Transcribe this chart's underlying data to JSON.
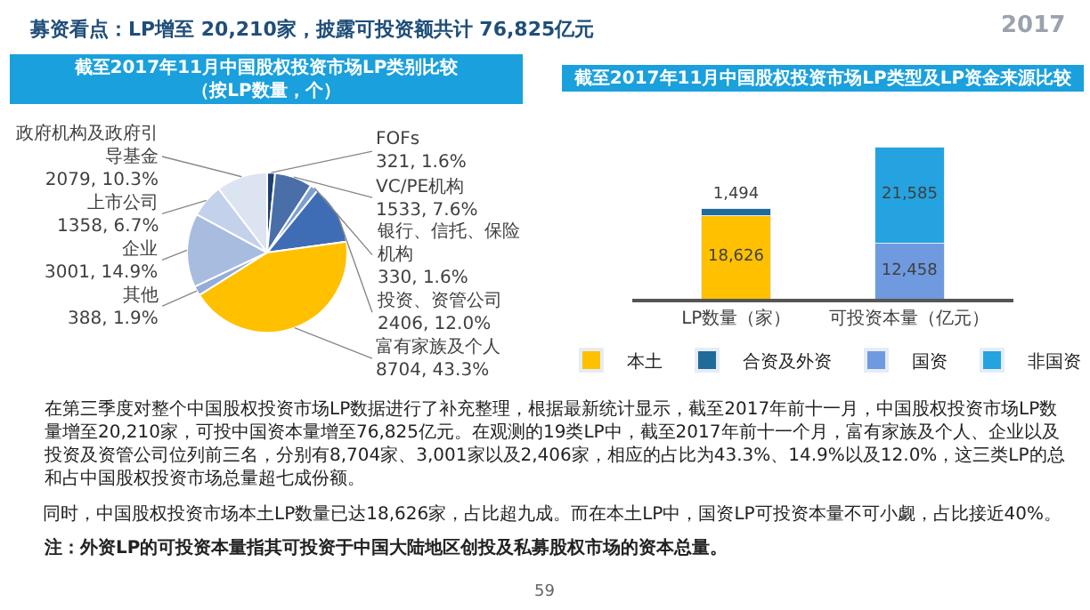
{
  "chart_data": [
    {
      "type": "pie",
      "title": "截至2017年11月中国股权投资市场LP类别比较",
      "subtitle": "（按LP数量，个）",
      "categories": [
        "FOFs",
        "VC/PE机构",
        "银行、信托、保险机构",
        "投资、资管公司",
        "富有家族及个人",
        "其他",
        "企业",
        "上市公司",
        "政府机构及政府引导基金"
      ],
      "values": [
        321,
        1533,
        330,
        2406,
        8704,
        388,
        3001,
        1358,
        2079
      ],
      "value_labels": [
        "321, 1.6%",
        "1533, 7.6%",
        "330, 1.6%",
        "2406, 12.0%",
        "8704, 43.3%",
        "388, 1.9%",
        "3001, 14.9%",
        "1358, 6.7%",
        "2079, 10.3%"
      ],
      "colors": [
        "#1f3f73",
        "#4a6ea8",
        "#7e9fd2",
        "#3e6db5",
        "#ffc000",
        "#93acd8",
        "#a8bce0",
        "#c3d1ea",
        "#dce4f2"
      ]
    },
    {
      "type": "bar",
      "title": "截至2017年11月中国股权投资市场LP类型及LP资金来源比较",
      "stacked": true,
      "legend": "bottom",
      "categories": [
        "LP数量（家）",
        "可投资本量（亿元）"
      ],
      "series": [
        {
          "name": "本土",
          "color": "#ffc000",
          "values": [
            18626,
            null
          ],
          "value_labels": [
            "18,626",
            null
          ]
        },
        {
          "name": "合资及外资",
          "color": "#1f6b9a",
          "values": [
            1494,
            null
          ],
          "value_labels": [
            "1,494",
            null
          ]
        },
        {
          "name": "国资",
          "color": "#6f9ae0",
          "values": [
            null,
            12458
          ],
          "value_labels": [
            null,
            "12,458"
          ]
        },
        {
          "name": "非国资",
          "color": "#25a3e0",
          "values": [
            null,
            21585
          ],
          "value_labels": [
            null,
            "21,585"
          ]
        }
      ]
    },
    {
      "type": "other",
      "annotations": [
        "募资看点：LP增至 20,210家，披露可投资额共计 76,825亿元",
        "2017",
        "在第三季度对整个中国股权投资市场LP数据进行了补充整理，根据最新统计显示，截至2017年前十一月，中国股权投资市场LP数量增至20,210家，可投中国资本量增至76,825亿元。在观测的19类LP中，截至2017年前十一个月，富有家族及个人、企业以及投资及资管公司位列前三名，分别有8,704家、3,001家以及2,406家，相应的占比为43.3%、14.9%以及12.0%，这三类LP的总和占中国股权投资市场总量超七成份额。",
        "同时，中国股权投资市场本土LP数量已达18,626家，占比超九成。而在本土LP中，国资LP可投资本量不可小觑，占比接近40%。",
        "注：外资LP的可投资本量指其可投资于中国大陆地区创投及私募股权市场的资本总量。",
        "59"
      ]
    }
  ]
}
